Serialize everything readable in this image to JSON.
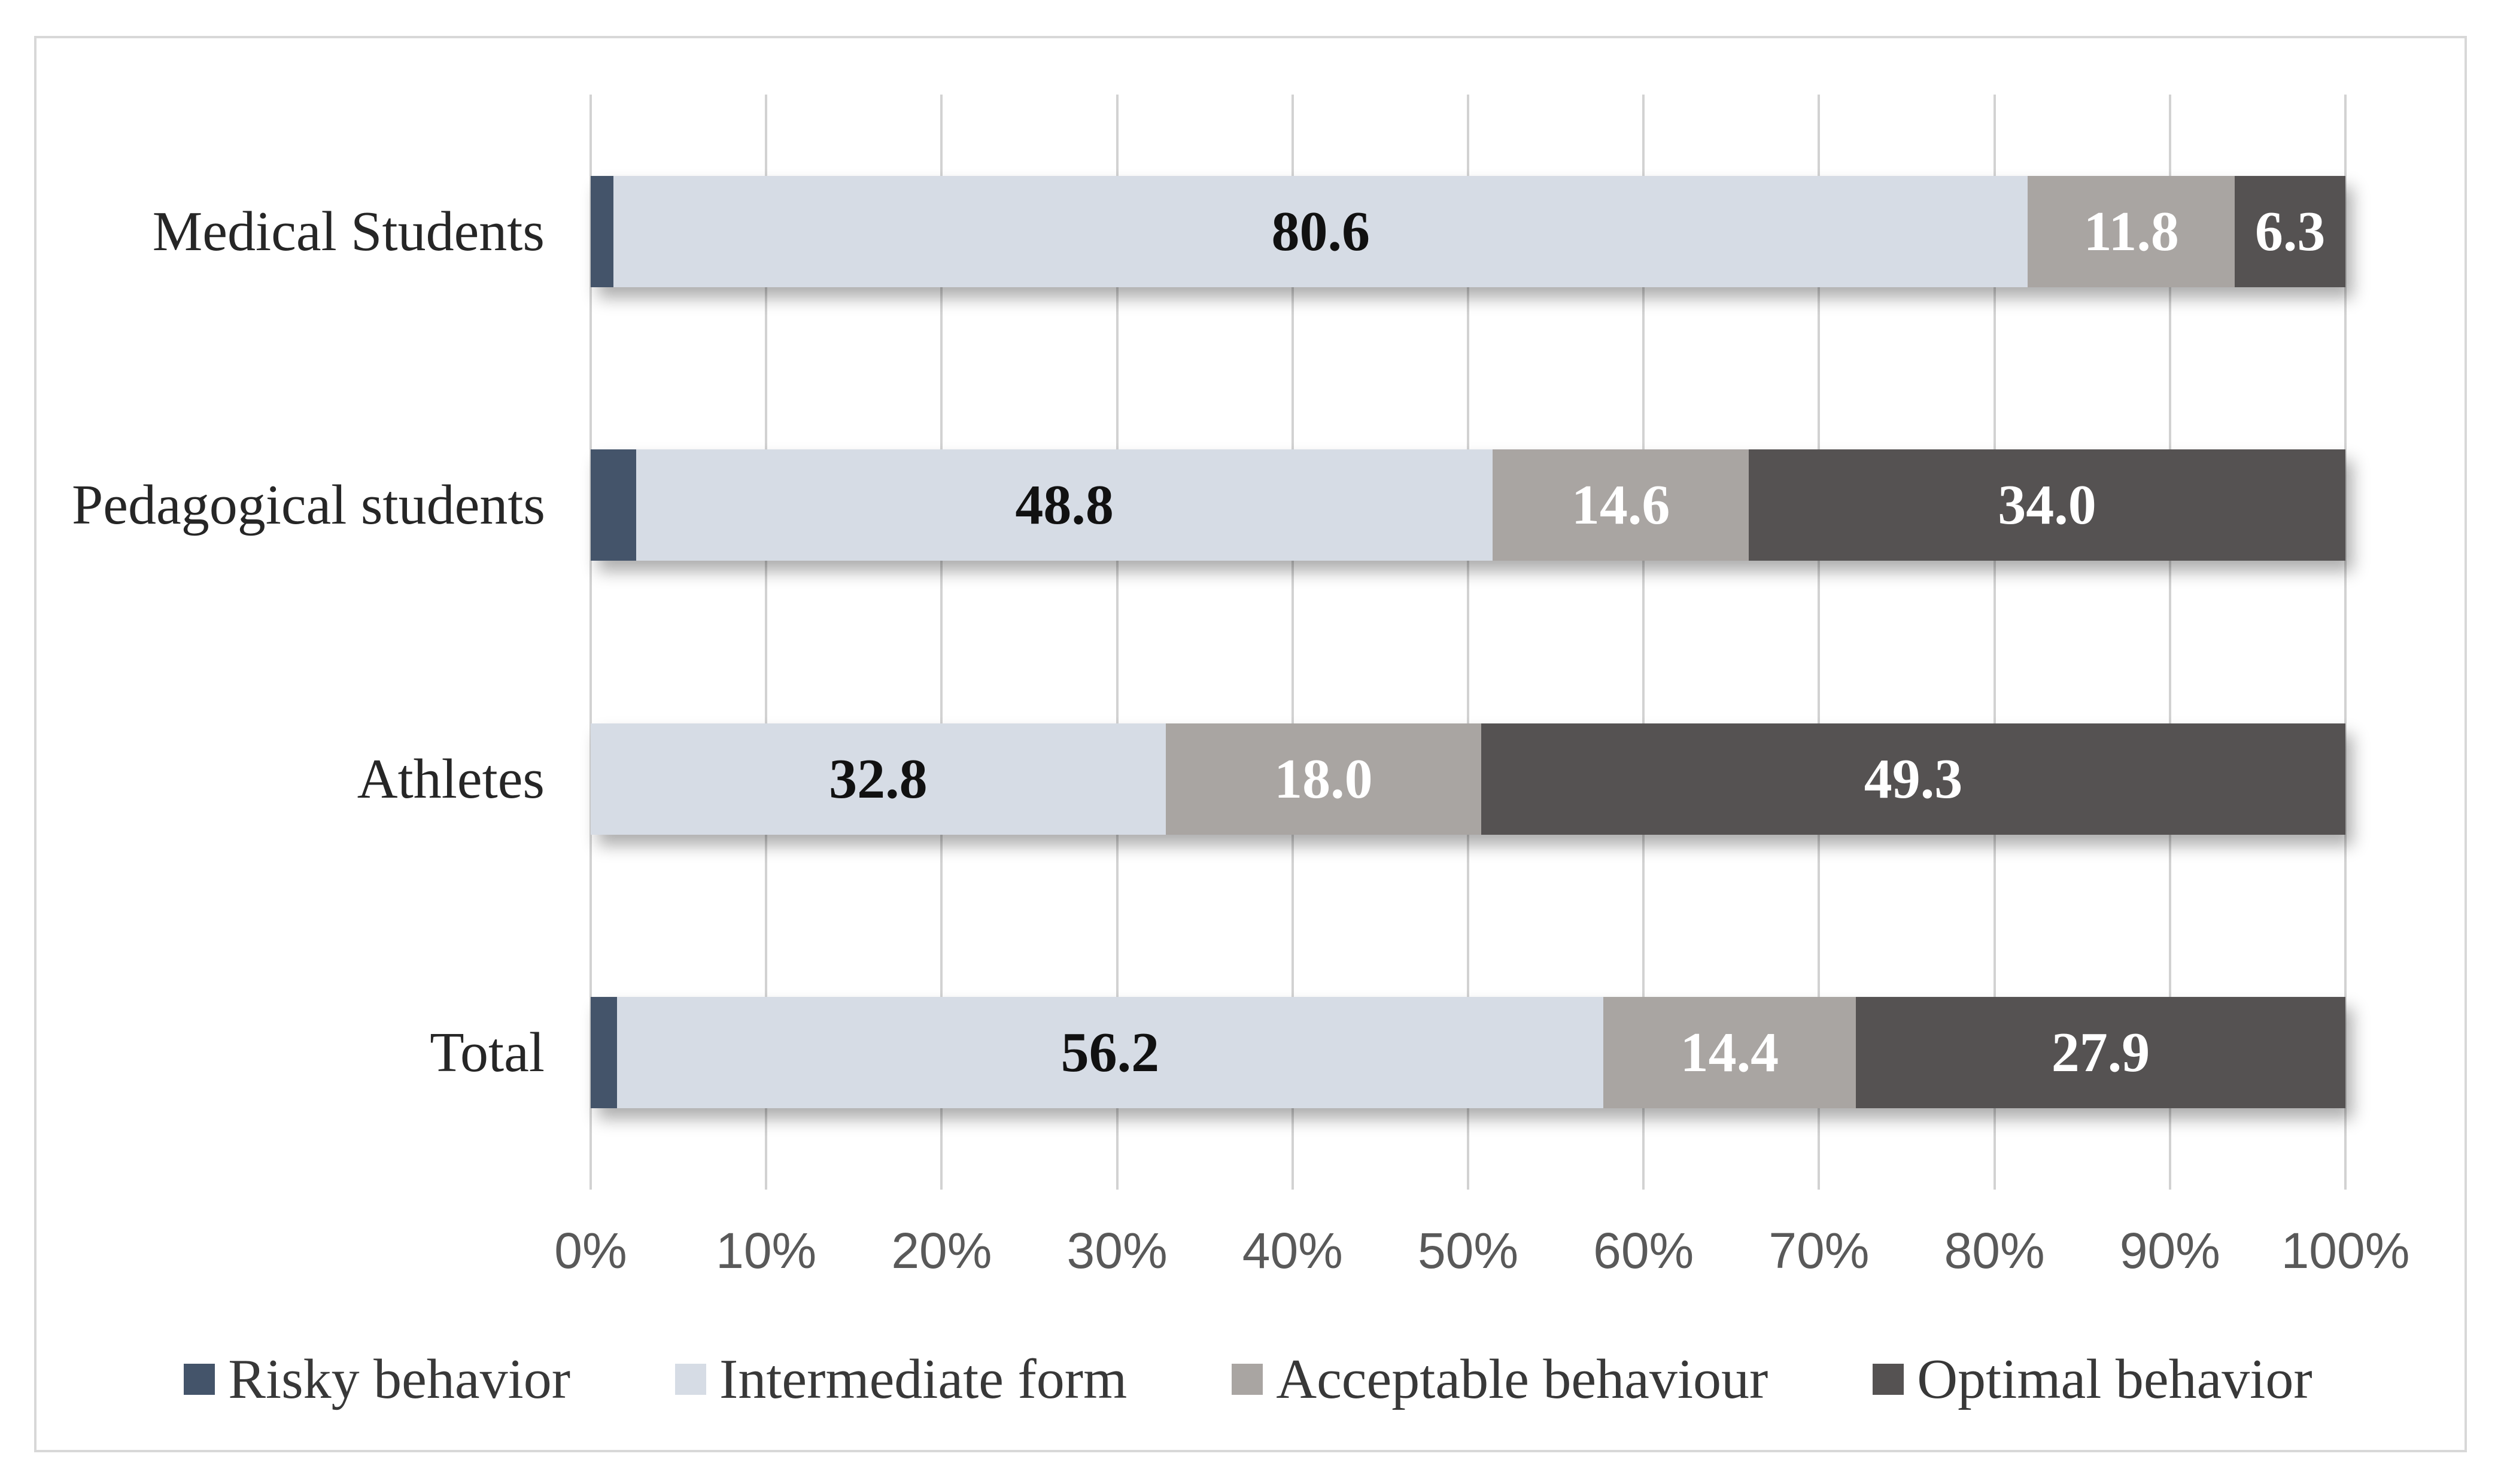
{
  "frame": {
    "border_color": "#d8d8d8",
    "background": "#ffffff"
  },
  "colors": {
    "gridline": "#d2d2d2",
    "axis_text": "#595959",
    "category_text": "#262626",
    "legend_text": "#383838",
    "label_dark": "#111111",
    "label_light": "#ffffff"
  },
  "chart_data": {
    "type": "bar",
    "orientation": "horizontal",
    "stacked": true,
    "units": "percent",
    "title": "",
    "xlabel": "",
    "ylabel": "",
    "categories": [
      "Medical Students",
      "Pedagogical students",
      "Athletes",
      "Total"
    ],
    "series": [
      {
        "name": "Risky behavior",
        "color": "#44546a",
        "values": [
          1.3,
          2.6,
          0,
          1.5
        ],
        "label_color": "#111111",
        "label_placement": "outside-end-of-segment"
      },
      {
        "name": "Intermediate form",
        "color": "#d6dce5",
        "values": [
          80.6,
          48.8,
          32.8,
          56.2
        ],
        "label_color": "#111111",
        "label_placement": "center"
      },
      {
        "name": "Acceptable behaviour",
        "color": "#a9a5a2",
        "values": [
          11.8,
          14.6,
          18.0,
          14.4
        ],
        "label_color": "#ffffff",
        "label_placement": "center"
      },
      {
        "name": "Optimal behavior",
        "color": "#555252",
        "values": [
          6.3,
          34.0,
          49.3,
          27.9
        ],
        "label_color": "#ffffff",
        "label_placement": "center"
      }
    ],
    "value_labels": [
      [
        "1.3",
        "80.6",
        "11.8",
        "6.3"
      ],
      [
        "2.6",
        "48.8",
        "14.6",
        "34.0"
      ],
      [
        "0",
        "32.8",
        "18.0",
        "49.3"
      ],
      [
        "1.5",
        "56.2",
        "14.4",
        "27.9"
      ]
    ],
    "x_axis": {
      "min": 0,
      "max": 100,
      "ticks": [
        "0%",
        "10%",
        "20%",
        "30%",
        "40%",
        "50%",
        "60%",
        "70%",
        "80%",
        "90%",
        "100%"
      ],
      "grid": true
    },
    "legend": {
      "position": "bottom",
      "entries": [
        "Risky behavior",
        "Intermediate form",
        "Acceptable behaviour",
        "Optimal behavior"
      ]
    }
  }
}
